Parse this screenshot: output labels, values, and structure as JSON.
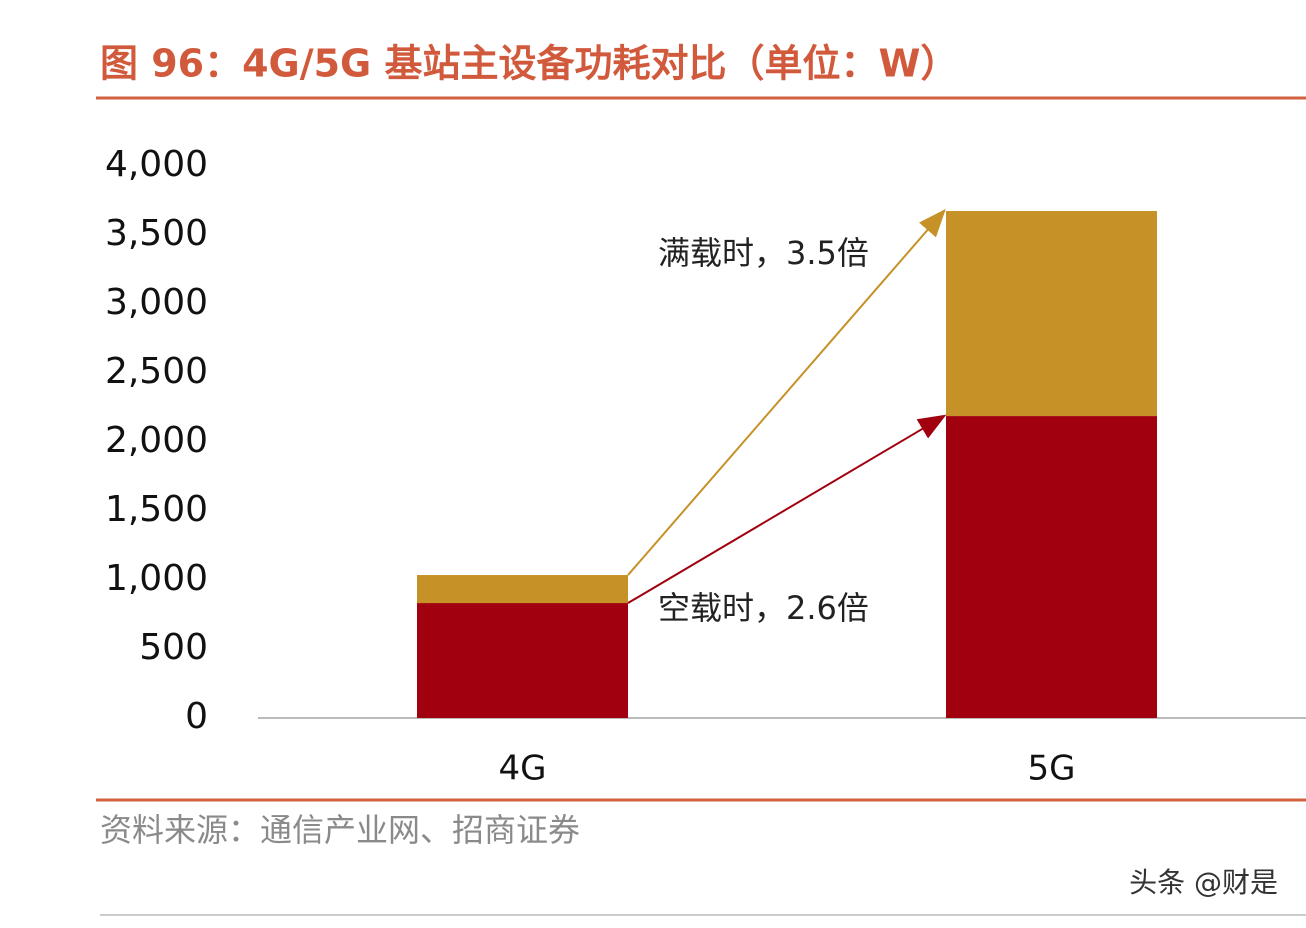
{
  "chart_data": {
    "type": "stacked_bar",
    "title": "图 96：4G/5G 基站主设备功耗对比（单位：W）",
    "categories": [
      "4G",
      "5G"
    ],
    "series": [
      {
        "color": "#a1000f",
        "values": [
          833,
          2188
        ]
      },
      {
        "color": "#c69126",
        "values": [
          203,
          1486
        ]
      }
    ],
    "ylim": [
      0,
      4000
    ],
    "yticks": [
      0,
      500,
      {
        "value": 1000,
        "label": "1,000"
      },
      {
        "value": 1500,
        "label": "1,500"
      },
      {
        "value": 2000,
        "label": "2,000"
      },
      {
        "value": 2500,
        "label": "2,500"
      },
      {
        "value": 3000,
        "label": "3,000"
      },
      {
        "value": 3500,
        "label": "3,500"
      },
      {
        "value": 4000,
        "label": "4,000"
      }
    ],
    "annotations": [
      "满载时，3.5倍",
      "空载时，2.6倍"
    ],
    "source": "资料来源：通信产业网、招商证券",
    "watermark": "头条 @财是"
  }
}
